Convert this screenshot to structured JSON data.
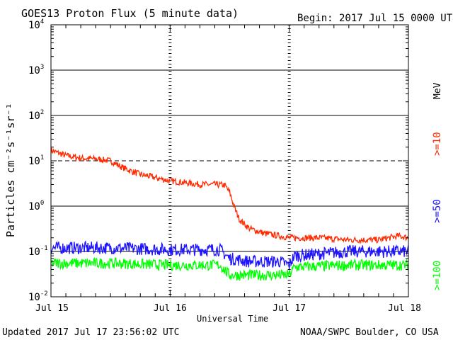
{
  "header": {
    "title": "GOES13 Proton Flux (5 minute data)",
    "begin": "Begin: 2017 Jul 15 0000 UTC"
  },
  "footer": {
    "updated": "Updated 2017 Jul 17 23:56:02 UTC",
    "credit": "NOAA/SWPC Boulder, CO USA"
  },
  "axis_labels": {
    "xlabel": "Universal Time",
    "ylabel": "Particles cm⁻²s⁻¹sr⁻¹",
    "units": "MeV"
  },
  "chart_data": {
    "type": "line",
    "title": "GOES13 Proton Flux (5 minute data)",
    "xlabel": "Universal Time",
    "ylabel": "Particles cm-2 s-1 sr-1",
    "y_scale": "log",
    "ylim": [
      0.01,
      10000
    ],
    "xlim": [
      "2017-07-15 00:00",
      "2017-07-18 00:00"
    ],
    "x_ticks": [
      "Jul 15",
      "Jul 16",
      "Jul 17",
      "Jul 18"
    ],
    "y_ticks": [
      {
        "label": "10",
        "exp": "-2",
        "value": 0.01
      },
      {
        "label": "10",
        "exp": "-1",
        "value": 0.1
      },
      {
        "label": "10",
        "exp": "0",
        "value": 1
      },
      {
        "label": "10",
        "exp": "1",
        "value": 10
      },
      {
        "label": "10",
        "exp": "2",
        "value": 100
      },
      {
        "label": "10",
        "exp": "3",
        "value": 1000
      },
      {
        "label": "10",
        "exp": "4",
        "value": 10000
      }
    ],
    "grid": {
      "solid_lines": [
        0.1,
        1,
        100,
        1000
      ],
      "dashed_lines": [
        10
      ],
      "vertical": "dashed at day boundaries"
    },
    "legend_placement": "right, vertical",
    "series": [
      {
        "name": ">=10",
        "color": "#ff2a00",
        "points": [
          [
            "2017-07-15 00:00",
            17
          ],
          [
            "2017-07-15 03:00",
            13
          ],
          [
            "2017-07-15 06:00",
            11.5
          ],
          [
            "2017-07-15 09:00",
            11
          ],
          [
            "2017-07-15 12:00",
            10
          ],
          [
            "2017-07-15 14:00",
            7.5
          ],
          [
            "2017-07-15 16:00",
            6
          ],
          [
            "2017-07-15 18:00",
            5
          ],
          [
            "2017-07-15 20:00",
            4.5
          ],
          [
            "2017-07-15 22:00",
            4
          ],
          [
            "2017-07-16 00:00",
            3.6
          ],
          [
            "2017-07-16 03:00",
            3.3
          ],
          [
            "2017-07-16 06:00",
            3.0
          ],
          [
            "2017-07-16 09:00",
            3.0
          ],
          [
            "2017-07-16 11:00",
            2.9
          ],
          [
            "2017-07-16 12:00",
            2.0
          ],
          [
            "2017-07-16 13:00",
            0.9
          ],
          [
            "2017-07-16 14:00",
            0.5
          ],
          [
            "2017-07-16 16:00",
            0.32
          ],
          [
            "2017-07-16 19:00",
            0.25
          ],
          [
            "2017-07-16 22:00",
            0.22
          ],
          [
            "2017-07-17 00:00",
            0.2
          ],
          [
            "2017-07-17 06:00",
            0.2
          ],
          [
            "2017-07-17 12:00",
            0.18
          ],
          [
            "2017-07-17 18:00",
            0.18
          ],
          [
            "2017-07-17 22:00",
            0.22
          ],
          [
            "2017-07-18 00:00",
            0.2
          ]
        ]
      },
      {
        "name": ">=50",
        "color": "#1e14ff",
        "points": [
          [
            "2017-07-15 00:00",
            0.12
          ],
          [
            "2017-07-15 12:00",
            0.12
          ],
          [
            "2017-07-16 00:00",
            0.11
          ],
          [
            "2017-07-16 10:00",
            0.11
          ],
          [
            "2017-07-16 12:00",
            0.07
          ],
          [
            "2017-07-16 16:00",
            0.06
          ],
          [
            "2017-07-16 22:00",
            0.06
          ],
          [
            "2017-07-17 00:00",
            0.05
          ],
          [
            "2017-07-17 01:00",
            0.08
          ],
          [
            "2017-07-17 12:00",
            0.1
          ],
          [
            "2017-07-18 00:00",
            0.1
          ]
        ]
      },
      {
        "name": ">=100",
        "color": "#00ff00",
        "points": [
          [
            "2017-07-15 00:00",
            0.055
          ],
          [
            "2017-07-15 12:00",
            0.055
          ],
          [
            "2017-07-16 00:00",
            0.05
          ],
          [
            "2017-07-16 10:00",
            0.05
          ],
          [
            "2017-07-16 12:00",
            0.03
          ],
          [
            "2017-07-17 00:00",
            0.03
          ],
          [
            "2017-07-17 01:00",
            0.045
          ],
          [
            "2017-07-17 12:00",
            0.05
          ],
          [
            "2017-07-18 00:00",
            0.05
          ]
        ]
      }
    ],
    "legend": [
      {
        "label": ">=10",
        "color": "#ff2a00"
      },
      {
        "label": ">=50",
        "color": "#1e14ff"
      },
      {
        "label": ">=100",
        "color": "#00ff00"
      }
    ]
  }
}
